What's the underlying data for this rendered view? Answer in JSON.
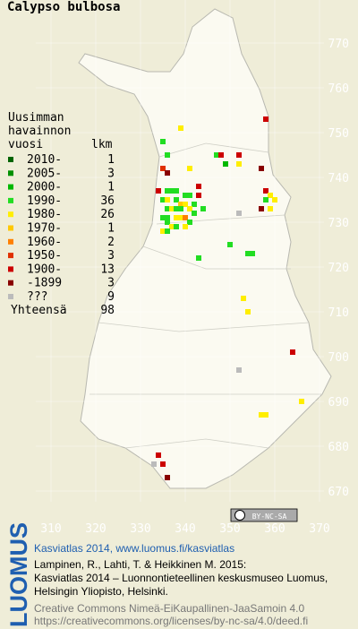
{
  "title": "Calypso bulbosa",
  "legend": {
    "header": [
      "Uusimman",
      "havainnon",
      "vuosi"
    ],
    "count_header": "lkm",
    "items": [
      {
        "label": "2010-",
        "count": 1,
        "color": "#006400"
      },
      {
        "label": "2005-",
        "count": 3,
        "color": "#009000"
      },
      {
        "label": "2000-",
        "count": 1,
        "color": "#00b800"
      },
      {
        "label": "1990-",
        "count": 36,
        "color": "#22dd22"
      },
      {
        "label": "1980-",
        "count": 26,
        "color": "#ffee00"
      },
      {
        "label": "1970-",
        "count": 1,
        "color": "#ffc800"
      },
      {
        "label": "1960-",
        "count": 2,
        "color": "#ff8000"
      },
      {
        "label": "1950-",
        "count": 3,
        "color": "#e03000"
      },
      {
        "label": "1900-",
        "count": 13,
        "color": "#cc0000"
      },
      {
        "label": "-1899",
        "count": 3,
        "color": "#880000"
      },
      {
        "label": "???",
        "count": 9,
        "color": "#bbbbbb"
      }
    ],
    "total_label": "Yhteensä",
    "total": 98
  },
  "map": {
    "xlim": [
      300,
      380
    ],
    "ylim": [
      660,
      780
    ],
    "xticks": [
      310,
      320,
      330,
      340,
      350,
      360,
      370
    ],
    "yticks": [
      670,
      680,
      690,
      700,
      710,
      720,
      730,
      740,
      750,
      760,
      770
    ],
    "points": [
      {
        "x": 358,
        "y": 753,
        "class": 8
      },
      {
        "x": 339,
        "y": 751,
        "class": 4
      },
      {
        "x": 335,
        "y": 748,
        "class": 3
      },
      {
        "x": 336,
        "y": 745,
        "class": 3
      },
      {
        "x": 347,
        "y": 745,
        "class": 3
      },
      {
        "x": 348,
        "y": 745,
        "class": 8
      },
      {
        "x": 352,
        "y": 745,
        "class": 8
      },
      {
        "x": 352,
        "y": 743,
        "class": 4
      },
      {
        "x": 349,
        "y": 743,
        "class": 2
      },
      {
        "x": 341,
        "y": 742,
        "class": 4
      },
      {
        "x": 335,
        "y": 742,
        "class": 7
      },
      {
        "x": 357,
        "y": 742,
        "class": 9
      },
      {
        "x": 336,
        "y": 741,
        "class": 9
      },
      {
        "x": 343,
        "y": 738,
        "class": 8
      },
      {
        "x": 343,
        "y": 736,
        "class": 8
      },
      {
        "x": 358,
        "y": 737,
        "class": 8
      },
      {
        "x": 359,
        "y": 736,
        "class": 4
      },
      {
        "x": 360,
        "y": 735,
        "class": 4
      },
      {
        "x": 358,
        "y": 735,
        "class": 3
      },
      {
        "x": 357,
        "y": 733,
        "class": 9
      },
      {
        "x": 359,
        "y": 733,
        "class": 4
      },
      {
        "x": 352,
        "y": 732,
        "class": 10
      },
      {
        "x": 334,
        "y": 737,
        "class": 8
      },
      {
        "x": 336,
        "y": 737,
        "class": 3
      },
      {
        "x": 337,
        "y": 737,
        "class": 3
      },
      {
        "x": 338,
        "y": 737,
        "class": 3
      },
      {
        "x": 340,
        "y": 736,
        "class": 3
      },
      {
        "x": 341,
        "y": 736,
        "class": 3
      },
      {
        "x": 335,
        "y": 735,
        "class": 3
      },
      {
        "x": 336,
        "y": 735,
        "class": 4
      },
      {
        "x": 338,
        "y": 735,
        "class": 3
      },
      {
        "x": 339,
        "y": 734,
        "class": 5
      },
      {
        "x": 340,
        "y": 734,
        "class": 4
      },
      {
        "x": 342,
        "y": 734,
        "class": 3
      },
      {
        "x": 336,
        "y": 733,
        "class": 3
      },
      {
        "x": 337,
        "y": 733,
        "class": 4
      },
      {
        "x": 338,
        "y": 733,
        "class": 3
      },
      {
        "x": 339,
        "y": 733,
        "class": 3
      },
      {
        "x": 341,
        "y": 733,
        "class": 4
      },
      {
        "x": 342,
        "y": 732,
        "class": 3
      },
      {
        "x": 335,
        "y": 731,
        "class": 3
      },
      {
        "x": 336,
        "y": 731,
        "class": 3
      },
      {
        "x": 338,
        "y": 731,
        "class": 4
      },
      {
        "x": 339,
        "y": 731,
        "class": 4
      },
      {
        "x": 340,
        "y": 731,
        "class": 6
      },
      {
        "x": 341,
        "y": 730,
        "class": 3
      },
      {
        "x": 336,
        "y": 730,
        "class": 3
      },
      {
        "x": 337,
        "y": 729,
        "class": 4
      },
      {
        "x": 338,
        "y": 729,
        "class": 3
      },
      {
        "x": 340,
        "y": 729,
        "class": 4
      },
      {
        "x": 335,
        "y": 728,
        "class": 4
      },
      {
        "x": 336,
        "y": 728,
        "class": 3
      },
      {
        "x": 344,
        "y": 733,
        "class": 3
      },
      {
        "x": 350,
        "y": 725,
        "class": 3
      },
      {
        "x": 343,
        "y": 722,
        "class": 3
      },
      {
        "x": 354,
        "y": 723,
        "class": 3
      },
      {
        "x": 355,
        "y": 723,
        "class": 3
      },
      {
        "x": 353,
        "y": 713,
        "class": 4
      },
      {
        "x": 354,
        "y": 710,
        "class": 4
      },
      {
        "x": 364,
        "y": 701,
        "class": 8
      },
      {
        "x": 352,
        "y": 697,
        "class": 10
      },
      {
        "x": 366,
        "y": 690,
        "class": 4
      },
      {
        "x": 357,
        "y": 687,
        "class": 4
      },
      {
        "x": 358,
        "y": 687,
        "class": 4
      },
      {
        "x": 334,
        "y": 678,
        "class": 8
      },
      {
        "x": 333,
        "y": 676,
        "class": 10
      },
      {
        "x": 335,
        "y": 676,
        "class": 8
      },
      {
        "x": 336,
        "y": 673,
        "class": 9
      }
    ]
  },
  "cc_badge": "BY-NC-SA",
  "footer": {
    "logo": "LUOMUS",
    "headline": "Kasviatlas 2014, www.luomus.fi/kasviatlas",
    "citation": [
      "Lampinen, R., Lahti, T. & Heikkinen M. 2015:",
      "Kasviatlas 2014 – Luonnontieteellinen keskusmuseo Luomus,",
      "Helsingin Yliopisto, Helsinki."
    ],
    "license": [
      "Creative Commons Nimeä-EiKaupallinen-JaaSamoin 4.0",
      "https://creativecommons.org/licenses/by-nc-sa/4.0/deed.fi"
    ]
  }
}
